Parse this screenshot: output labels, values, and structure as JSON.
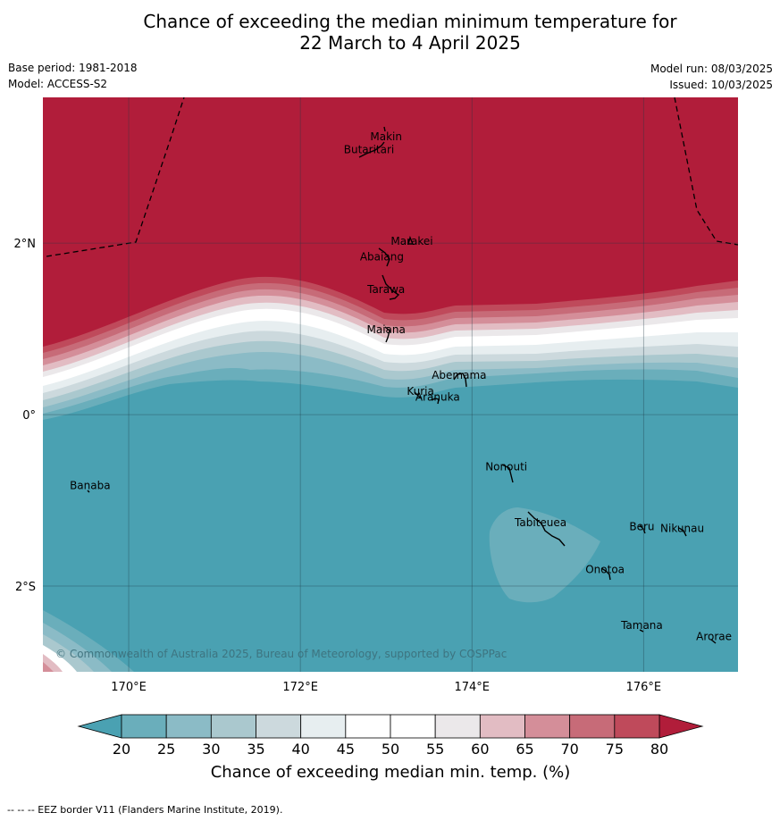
{
  "title": {
    "line1": "Chance of exceeding the median minimum temperature for",
    "line2": "22 March to 4 April 2025"
  },
  "meta": {
    "base_period": "Base period: 1981-2018",
    "model": "Model: ACCESS-S2",
    "model_run": "Model run: 08/03/2025",
    "issued": "Issued: 10/03/2025"
  },
  "map": {
    "lon_range": [
      169,
      177.1
    ],
    "lat_range": [
      -3,
      3.7
    ],
    "lon_ticks": [
      {
        "value": 170,
        "label": "170°E"
      },
      {
        "value": 172,
        "label": "172°E"
      },
      {
        "value": 174,
        "label": "174°E"
      },
      {
        "value": 176,
        "label": "176°E"
      }
    ],
    "lat_ticks": [
      {
        "value": 2,
        "label": "2°N"
      },
      {
        "value": 0,
        "label": "0°"
      },
      {
        "value": -2,
        "label": "2°S"
      }
    ],
    "islands": [
      {
        "name": "Makin",
        "lon": 173.0,
        "lat": 3.2
      },
      {
        "name": "Butaritari",
        "lon": 172.8,
        "lat": 3.05
      },
      {
        "name": "Marakei",
        "lon": 173.3,
        "lat": 1.98
      },
      {
        "name": "Abaiang",
        "lon": 172.95,
        "lat": 1.8
      },
      {
        "name": "Tarawa",
        "lon": 173.0,
        "lat": 1.42
      },
      {
        "name": "Maiana",
        "lon": 173.0,
        "lat": 0.95
      },
      {
        "name": "Abemama",
        "lon": 173.85,
        "lat": 0.42
      },
      {
        "name": "Kuria",
        "lon": 173.4,
        "lat": 0.23
      },
      {
        "name": "Aranuka",
        "lon": 173.6,
        "lat": 0.16
      },
      {
        "name": "Nonouti",
        "lon": 174.4,
        "lat": -0.65
      },
      {
        "name": "Banaba",
        "lon": 169.55,
        "lat": -0.87
      },
      {
        "name": "Tabiteuea",
        "lon": 174.8,
        "lat": -1.3
      },
      {
        "name": "Beru",
        "lon": 175.98,
        "lat": -1.35
      },
      {
        "name": "Nikunau",
        "lon": 176.45,
        "lat": -1.37
      },
      {
        "name": "Onotoa",
        "lon": 175.55,
        "lat": -1.85
      },
      {
        "name": "Tamana",
        "lon": 175.98,
        "lat": -2.5
      },
      {
        "name": "Arorae",
        "lon": 176.82,
        "lat": -2.63
      }
    ],
    "copyright": "© Commonwealth of Australia 2025, Bureau of Meteorology, supported by COSPPac"
  },
  "colorbar": {
    "label": "Chance of exceeding median min. temp. (%)",
    "ticks": [
      "20",
      "25",
      "30",
      "35",
      "40",
      "45",
      "50",
      "55",
      "60",
      "65",
      "70",
      "75",
      "80"
    ],
    "low_color": "#4aa1b2",
    "high_color": "#b11d3a",
    "bin_colors": [
      "#6aaebb",
      "#8bbbc6",
      "#aac8ce",
      "#ccd9dd",
      "#e7eef0",
      "#ffffff",
      "#ffffff",
      "#ebe8ea",
      "#e2bcc3",
      "#d48e99",
      "#c76b78",
      "#bf4a5b"
    ]
  },
  "footer": "--  --  -- EEZ border V11 (Flanders Marine Institute, 2019)."
}
